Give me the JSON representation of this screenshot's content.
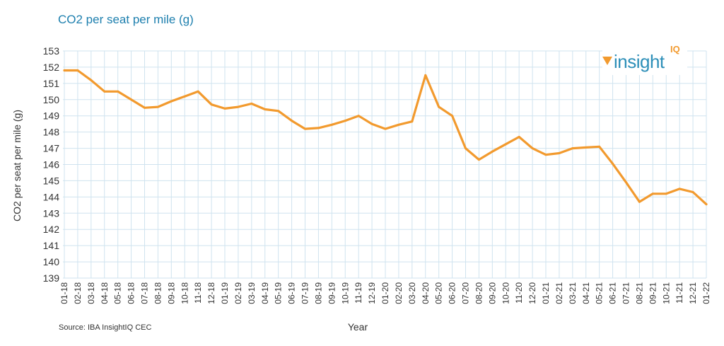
{
  "chart_data": {
    "type": "line",
    "title": "CO2 per seat per mile (g)",
    "xlabel": "Year",
    "ylabel": "CO2 per seat per mile (g)",
    "ylim": [
      139,
      153
    ],
    "yticks": [
      139,
      140,
      141,
      142,
      143,
      144,
      145,
      146,
      147,
      148,
      149,
      150,
      151,
      152,
      153
    ],
    "grid": true,
    "categories": [
      "01-18",
      "02-18",
      "03-18",
      "04-18",
      "05-18",
      "06-18",
      "07-18",
      "08-18",
      "09-18",
      "10-18",
      "11-18",
      "12-18",
      "01-19",
      "02-19",
      "03-19",
      "04-19",
      "05-19",
      "06-19",
      "07-19",
      "08-19",
      "09-19",
      "10-19",
      "11-19",
      "12-19",
      "01-20",
      "02-20",
      "03-20",
      "04-20",
      "05-20",
      "06-20",
      "07-20",
      "08-20",
      "09-20",
      "10-20",
      "11-20",
      "12-20",
      "01-21",
      "02-21",
      "03-21",
      "04-21",
      "05-21",
      "06-21",
      "07-21",
      "08-21",
      "09-21",
      "10-21",
      "11-21",
      "12-21",
      "01-22"
    ],
    "series": [
      {
        "color": "#f29a2e",
        "values": [
          151.8,
          151.8,
          151.2,
          150.5,
          150.5,
          150.0,
          149.5,
          149.55,
          149.9,
          150.2,
          150.5,
          149.7,
          149.45,
          149.55,
          149.75,
          149.4,
          149.3,
          148.7,
          148.2,
          148.25,
          148.45,
          148.7,
          149.0,
          148.5,
          148.2,
          148.45,
          148.65,
          151.5,
          149.55,
          149.0,
          147.0,
          146.3,
          146.8,
          147.25,
          147.7,
          147.0,
          146.6,
          146.7,
          147.0,
          147.05,
          147.1,
          146.05,
          144.9,
          143.7,
          144.2,
          144.2,
          144.5,
          144.3,
          143.55
        ]
      }
    ]
  },
  "source": "Source: IBA InsightIQ CEC",
  "logo": {
    "word": "insight",
    "suffix": "IQ",
    "word_color": "#2d8fb8",
    "accent_color": "#f29a2e"
  },
  "colors": {
    "title": "#1d7fae",
    "grid": "#cfe3ef",
    "line": "#f29a2e"
  }
}
